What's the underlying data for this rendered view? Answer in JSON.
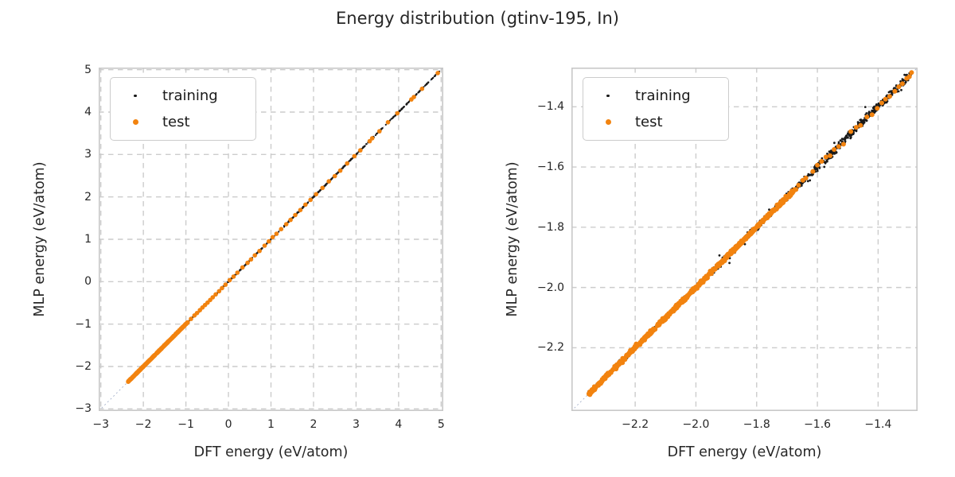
{
  "figure": {
    "title": "Energy distribution (gtinv-195, In)",
    "background": "#ffffff",
    "text_color": "#262626"
  },
  "chart_data": [
    {
      "type": "scatter",
      "id": "full-range",
      "xlabel": "DFT energy (eV/atom)",
      "ylabel": "MLP energy (eV/atom)",
      "xlim": [
        -3.05,
        5.05
      ],
      "ylim": [
        -3.05,
        5.05
      ],
      "xticks": [
        -3,
        -2,
        -1,
        0,
        1,
        2,
        3,
        4,
        5
      ],
      "yticks": [
        -3,
        -2,
        -1,
        0,
        1,
        2,
        3,
        4,
        5
      ],
      "tick_decimals": 0,
      "grid": {
        "show": true,
        "color": "#cccccc",
        "dash": "6.5 5.5",
        "width": 1.4
      },
      "frame_color": "#c8c8c8",
      "identity_line": {
        "relation": "y=x",
        "color": "#a7b3cc",
        "dash": "2 3.2",
        "width": 0.9
      },
      "legend": {
        "location": "upper left",
        "entries": [
          {
            "label": "training",
            "color": "#1a1a1a",
            "marker_px": 3.5
          },
          {
            "label": "test",
            "color": "#f2830f",
            "marker_px": 7
          }
        ]
      },
      "series": [
        {
          "name": "training",
          "color": "#1a1a1a",
          "marker_radius_px": 1.1,
          "relation": "y=x",
          "bands": [
            {
              "x_from": -2.36,
              "x_to": -0.92,
              "count": 420,
              "noise_sd": 0.004
            },
            {
              "x_from": -0.92,
              "x_to": 1.6,
              "count": 300,
              "noise_sd": 0.006
            },
            {
              "x_from": 1.6,
              "x_to": 3.3,
              "count": 200,
              "noise_sd": 0.006
            },
            {
              "x_from": 3.3,
              "x_to": 4.97,
              "count": 150,
              "noise_sd": 0.006
            }
          ],
          "points": [],
          "point_noise_sd": 0
        },
        {
          "name": "test",
          "color": "#f2830f",
          "marker_radius_px": 2.8,
          "relation": "y=x",
          "bands": [
            {
              "x_from": -2.36,
              "x_to": -0.95,
              "count": 340,
              "noise_sd": 0.003
            }
          ],
          "points": [
            -0.88,
            -0.8,
            -0.74,
            -0.67,
            -0.61,
            -0.55,
            -0.49,
            -0.43,
            -0.37,
            -0.3,
            -0.22,
            -0.15,
            -0.07,
            0.03,
            0.12,
            0.21,
            0.33,
            0.45,
            0.53,
            0.62,
            0.73,
            0.85,
            0.95,
            1.04,
            1.13,
            1.24,
            1.36,
            1.46,
            1.57,
            1.69,
            1.81,
            1.93,
            2.06,
            2.21,
            2.36,
            2.5,
            2.63,
            2.79,
            2.96,
            3.1,
            3.32,
            3.38,
            3.55,
            3.75,
            3.97,
            4.3,
            4.36,
            4.55,
            4.92
          ],
          "point_noise_sd": 0.004
        }
      ]
    },
    {
      "type": "scatter",
      "id": "zoomed-low-energy",
      "xlabel": "DFT energy (eV/atom)",
      "ylabel": "MLP energy (eV/atom)",
      "xlim": [
        -2.41,
        -1.27
      ],
      "ylim": [
        -2.41,
        -1.27
      ],
      "xticks": [
        -2.2,
        -2.0,
        -1.8,
        -1.6,
        -1.4
      ],
      "yticks": [
        -2.2,
        -2.0,
        -1.8,
        -1.6,
        -1.4
      ],
      "tick_decimals": 1,
      "grid": {
        "show": true,
        "color": "#cccccc",
        "dash": "6.5 5.5",
        "width": 1.4
      },
      "frame_color": "#c8c8c8",
      "identity_line": {
        "relation": "y=x",
        "color": "#a7b3cc",
        "dash": "2 3.2",
        "width": 0.9
      },
      "legend": {
        "location": "upper left",
        "entries": [
          {
            "label": "training",
            "color": "#1a1a1a",
            "marker_px": 3.5
          },
          {
            "label": "test",
            "color": "#f2830f",
            "marker_px": 7
          }
        ]
      },
      "series": [
        {
          "name": "training",
          "color": "#1a1a1a",
          "marker_radius_px": 1.4,
          "relation": "y=x",
          "bands": [
            {
              "x_from": -2.355,
              "x_to": -1.95,
              "count": 420,
              "noise_sd": 0.003
            },
            {
              "x_from": -1.95,
              "x_to": -1.6,
              "count": 330,
              "noise_sd": 0.0055
            },
            {
              "x_from": -1.6,
              "x_to": -1.29,
              "count": 330,
              "noise_sd": 0.007
            },
            {
              "x_from": -2.02,
              "x_to": -1.31,
              "count": 24,
              "noise_sd": 0.018
            }
          ],
          "points": [],
          "point_noise_sd": 0
        },
        {
          "name": "test",
          "color": "#f2830f",
          "marker_radius_px": 3.0,
          "relation": "y=x",
          "bands": [
            {
              "x_from": -2.355,
              "x_to": -1.67,
              "count": 620,
              "noise_sd": 0.0028
            }
          ],
          "points": [
            -1.662,
            -1.648,
            -1.638,
            -1.615,
            -1.6,
            -1.586,
            -1.572,
            -1.558,
            -1.545,
            -1.53,
            -1.514,
            -1.49,
            -1.472,
            -1.458,
            -1.437,
            -1.42,
            -1.403,
            -1.388,
            -1.376,
            -1.362,
            -1.345,
            -1.332,
            -1.32,
            -1.306,
            -1.297,
            -1.29
          ],
          "point_noise_sd": 0.004
        }
      ]
    }
  ]
}
